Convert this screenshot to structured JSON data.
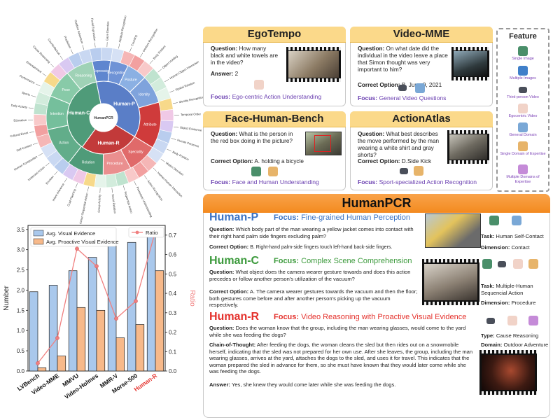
{
  "sunburst": {
    "center_label": "HumanPCR",
    "inner": [
      "Human-P",
      "Human-C",
      "Human-R"
    ],
    "middle": [
      "Expression",
      "Recognition",
      "Posture",
      "Identity",
      "Attribute",
      "Speciality",
      "Procedure",
      "Relation",
      "Action",
      "Intention",
      "Pose",
      "Reasoning"
    ],
    "outer_labels": [
      "Facial Expression",
      "Gaze Direction",
      "Attribute Recognition",
      "Counting",
      "Gesture Recognition",
      "Body Posture",
      "Object Holding",
      "Human-Object Interaction",
      "Spatial Relation",
      "Identity Recognition",
      "Temporal Order",
      "Object Existence",
      "Human Presence",
      "Body Position",
      "Motion Direction",
      "Human-Human Interaction",
      "Action Recognition",
      "Procedure Understanding",
      "Sequential Action",
      "Social Relation",
      "Group Activity",
      "Multiple Human Sequential Action",
      "Goal Planning",
      "Intent Inference",
      "Emotion",
      "Irrelevant Action",
      "Human Composition",
      "Self-Contact",
      "Cultural Event",
      "Education",
      "Daily Activity",
      "Sports",
      "Performance",
      "Entertainment",
      "Cause Reasoning",
      "Counterfactual",
      "Prediction",
      "Outdoor Adventure"
    ]
  },
  "bar_chart": {
    "legend_visual": "Avg. Visual Evidence",
    "legend_proactive": "Avg. Proactive Visual Evidence",
    "legend_ratio": "Ratio",
    "ylabel_left": "Number",
    "ylabel_right": "Ratio",
    "left_ticks": [
      "0.0",
      "0.5",
      "1.0",
      "1.5",
      "2.0",
      "2.5",
      "3.0",
      "3.5"
    ],
    "right_ticks": [
      "0.0",
      "0.1",
      "0.2",
      "0.3",
      "0.4",
      "0.5",
      "0.6",
      "0.7"
    ],
    "colors": {
      "visual": "#a9c8ec",
      "proactive": "#f7b98a",
      "ratio": "#f07f7f",
      "highlight": "#e4302b"
    }
  },
  "chart_data": {
    "type": "bar",
    "categories": [
      "LVBench",
      "Video-MME",
      "MMVU",
      "Video-Holmes",
      "MMR-V",
      "Morse-500",
      "Human-R"
    ],
    "series": [
      {
        "name": "Avg. Visual Evidence",
        "values": [
          1.96,
          2.12,
          2.48,
          2.81,
          3.09,
          3.18,
          3.45
        ]
      },
      {
        "name": "Avg. Proactive Visual Evidence",
        "values": [
          0.08,
          0.37,
          1.57,
          1.5,
          0.82,
          1.15,
          2.48
        ]
      },
      {
        "name": "Ratio",
        "axis": "right",
        "type": "line",
        "values": [
          0.04,
          0.17,
          0.63,
          0.54,
          0.27,
          0.36,
          0.72
        ]
      }
    ],
    "ylim": [
      0,
      3.6
    ],
    "ylim_right": [
      0,
      0.75
    ],
    "xlabel": "",
    "ylabel": "Number",
    "ylabel_right": "Ratio",
    "highlight_category": "Human-R"
  },
  "ego": {
    "title": "EgoTempo",
    "question_label": "Question:",
    "question": "How many black and white towels are in the video?",
    "answer_label": "Answer:",
    "answer": "2",
    "focus_label": "Focus:",
    "focus": "Ego-centric Action Understanding"
  },
  "vmme": {
    "title": "Video-MME",
    "question_label": "Question:",
    "question": "On what date did the individual in the video leave a place that Simon thought was very important to him?",
    "option_label": "Correct Option:",
    "option": "B. June 9, 2021",
    "focus_label": "Focus:",
    "focus": "General Video Questions"
  },
  "face": {
    "title": "Face-Human-Bench",
    "question_label": "Question:",
    "question": "What is the person in the red box doing in the picture?",
    "option_label": "Correct Option:",
    "option": "A. holding a bicycle",
    "focus_label": "Focus:",
    "focus": "Face and Human Understanding"
  },
  "atlas": {
    "title": "ActionAtlas",
    "question_label": "Question:",
    "question": "What best describes the move performed by the man wearing a white shirt and gray shorts?",
    "option_label": "Correct Option:",
    "option": "D.Side  Kick",
    "focus_label": "Focus:",
    "focus": "Sport-specialized Action Recognition"
  },
  "feature": {
    "title": "Feature",
    "items": [
      "Single Image",
      "Multiple Images",
      "Third-person Video",
      "Egocentric Video",
      "General Domain",
      "Single Domain of Expertise",
      "Multiple Domains of Expertise"
    ]
  },
  "humanpcr": {
    "title": "HumanPCR",
    "p": {
      "name": "Human-P",
      "focus_label": "Focus:",
      "focus": "Fine-grained Human Perception",
      "question_label": "Question:",
      "question": "Which body part of the man wearing a yellow jacket comes into contact with their right hand palm side fingers excluding palm?",
      "option_label": "Correct Option:",
      "option": "B. Right-hand palm-side fingers touch left-hand back-side fingers.",
      "task_label": "Task:",
      "task": "Human Self-Contact",
      "dim_label": "Dimension:",
      "dim": "Contact"
    },
    "c": {
      "name": "Human-C",
      "focus_label": "Focus:",
      "focus": "Complex Scene Comprehension",
      "question_label": "Question:",
      "question": "What object does the camera wearer gesture towards and does this action precedes or follow another person's utilization of the vacuum?",
      "option_label": "Correct Option:",
      "option": "A. The camera wearer gestures towards the vacuum and then the floor; both gestures come before and after another person's picking up the vacuum respectively.",
      "task_label": "Task:",
      "task": "Multiple-Human Sequencial Action",
      "dim_label": "Dimension:",
      "dim": "Procedure"
    },
    "r": {
      "name": "Human-R",
      "focus_label": "Focus:",
      "focus": "Video Reasoning with Proactive Visual Evidence",
      "question_label": "Question:",
      "question": "Does the woman know that the group, including the man wearing glasses, would come to the yard while she was feeding the dogs?",
      "cot_label": "Chain-of-Thought:",
      "cot": "After feeding the dogs, the woman cleans the sled but then rides out on a snowmobile herself, indicating that the sled was not prepared for her own use. After she leaves, the group, including the man wearing glasses, arrives at the yard, attaches the dogs to the sled, and uses it for travel. This indicates that the woman prepared the sled in advance for them, so she must have known that they would later come while she was feeding the dogs.",
      "answer_label": "Answer:",
      "answer": "Yes, she knew they would come later while she was feeding the dogs.",
      "type_label": "Type:",
      "type": "Cause Reasoning",
      "domain_label": "Domain:",
      "domain": "Outdoor Adventure"
    }
  }
}
